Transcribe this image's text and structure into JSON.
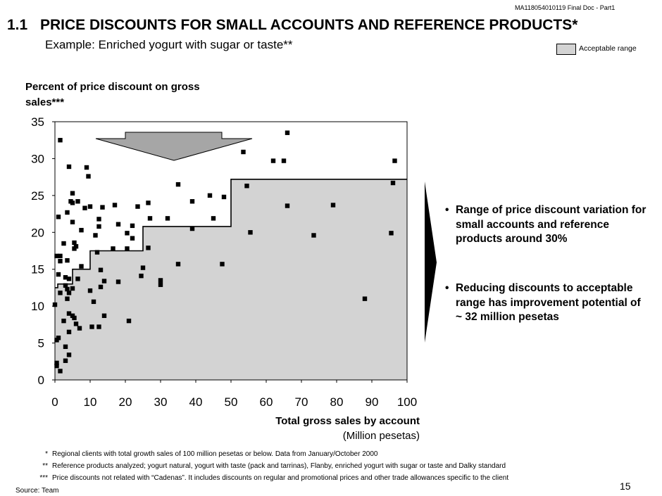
{
  "doc_id": "MA118054010119 Final Doc - Part1",
  "header": {
    "number": "1.1",
    "title": "PRICE DISCOUNTS FOR SMALL ACCOUNTS AND REFERENCE PRODUCTS*",
    "subtitle": "Example: Enriched yogurt with sugar or taste**"
  },
  "legend": {
    "label": "Acceptable range",
    "color": "#d3d3d3"
  },
  "colors": {
    "area": "#d3d3d3",
    "point": "#000000",
    "arrow": "#a6a6a6"
  },
  "chart_data": {
    "type": "scatter",
    "ylabel": "Percent of price discount on gross sales***",
    "xlabel": "Total gross sales by account",
    "xunit": "(Million pesetas)",
    "xlim": [
      0,
      100
    ],
    "ylim": [
      0,
      35
    ],
    "x_ticks": [
      0,
      10,
      20,
      30,
      40,
      50,
      60,
      70,
      80,
      90,
      100
    ],
    "y_ticks": [
      0,
      5,
      10,
      15,
      20,
      25,
      30,
      35
    ],
    "grid": false,
    "acceptable_range": {
      "x": [
        0,
        0.8,
        0.8,
        5,
        5,
        10,
        10,
        25,
        25,
        50,
        50,
        100
      ],
      "y": [
        12.5,
        12.5,
        13,
        13,
        15,
        15,
        17.5,
        17.5,
        20.8,
        20.8,
        27.2,
        27.2
      ]
    },
    "points": [
      [
        1.5,
        32.5
      ],
      [
        66,
        33.5
      ],
      [
        53.5,
        30.9
      ],
      [
        62,
        29.7
      ],
      [
        65,
        29.7
      ],
      [
        96.5,
        29.7
      ],
      [
        4,
        28.9
      ],
      [
        9,
        28.8
      ],
      [
        9.5,
        27.6
      ],
      [
        35,
        26.5
      ],
      [
        54.5,
        26.3
      ],
      [
        96,
        26.7
      ],
      [
        5,
        25.3
      ],
      [
        44,
        25.0
      ],
      [
        48,
        24.8
      ],
      [
        4.5,
        24.2
      ],
      [
        5,
        24.0
      ],
      [
        6.5,
        24.2
      ],
      [
        26.5,
        24.0
      ],
      [
        39,
        24.2
      ],
      [
        3.5,
        22.7
      ],
      [
        8.5,
        23.3
      ],
      [
        10,
        23.5
      ],
      [
        13.5,
        23.4
      ],
      [
        17,
        23.7
      ],
      [
        23.5,
        23.5
      ],
      [
        66,
        23.6
      ],
      [
        79,
        23.7
      ],
      [
        1,
        22.1
      ],
      [
        5,
        21.4
      ],
      [
        12.5,
        21.8
      ],
      [
        18,
        21.1
      ],
      [
        20.5,
        19.9
      ],
      [
        22,
        20.9
      ],
      [
        27,
        21.9
      ],
      [
        32,
        21.9
      ],
      [
        45,
        21.9
      ],
      [
        7.5,
        20.3
      ],
      [
        12.5,
        20.8
      ],
      [
        11.5,
        19.6
      ],
      [
        22,
        19.2
      ],
      [
        39,
        20.5
      ],
      [
        55.5,
        20.0
      ],
      [
        73.5,
        19.6
      ],
      [
        95.5,
        19.9
      ],
      [
        5.5,
        18.6
      ],
      [
        2.5,
        18.5
      ],
      [
        6,
        18.1
      ],
      [
        5.5,
        17.8
      ],
      [
        16.5,
        17.8
      ],
      [
        20.5,
        17.8
      ],
      [
        26.5,
        17.9
      ],
      [
        12,
        17.3
      ],
      [
        0.5,
        16.8
      ],
      [
        1.5,
        16.8
      ],
      [
        3.5,
        16.2
      ],
      [
        1.5,
        16.1
      ],
      [
        7.5,
        15.4
      ],
      [
        35,
        15.7
      ],
      [
        47.5,
        15.7
      ],
      [
        25,
        15.2
      ],
      [
        13,
        14.9
      ],
      [
        1,
        14.3
      ],
      [
        3,
        13.9
      ],
      [
        4,
        13.7
      ],
      [
        6.5,
        13.7
      ],
      [
        24.5,
        14.1
      ],
      [
        14,
        13.4
      ],
      [
        18,
        13.3
      ],
      [
        30,
        13.5
      ],
      [
        30,
        12.9
      ],
      [
        3,
        12.8
      ],
      [
        5,
        12.4
      ],
      [
        3.5,
        12.3
      ],
      [
        13,
        12.6
      ],
      [
        1.5,
        11.8
      ],
      [
        4,
        11.8
      ],
      [
        10,
        12.1
      ],
      [
        3.5,
        11.0
      ],
      [
        0,
        10.2
      ],
      [
        11,
        10.6
      ],
      [
        4,
        9.0
      ],
      [
        5,
        8.7
      ],
      [
        5.5,
        8.4
      ],
      [
        14,
        8.7
      ],
      [
        2.5,
        8.0
      ],
      [
        6,
        7.6
      ],
      [
        21,
        8.0
      ],
      [
        7,
        7.0
      ],
      [
        10.5,
        7.2
      ],
      [
        12.5,
        7.2
      ],
      [
        4,
        6.5
      ],
      [
        1,
        5.7
      ],
      [
        0.5,
        5.4
      ],
      [
        3,
        4.5
      ],
      [
        4,
        3.4
      ],
      [
        3,
        2.6
      ],
      [
        0.5,
        2.3
      ],
      [
        0.5,
        1.9
      ],
      [
        1.5,
        1.2
      ],
      [
        88,
        11.0
      ]
    ]
  },
  "arrow_label": "",
  "bullets": [
    {
      "bullet": "•",
      "text": "Range of price discount variation for small accounts and reference products around  30%"
    },
    {
      "bullet": "•",
      "text": "Reducing discounts to acceptable range has improvement potential of  ~ 32 million pesetas"
    }
  ],
  "footnotes": [
    {
      "marker": "*",
      "text": "Regional clients with total growth sales of 100 million pesetas or below. Data from January/October 2000"
    },
    {
      "marker": "**",
      "text": "Reference products analyzed; yogurt natural, yogurt with taste (pack and tarrinas), Flanby, enriched yogurt with sugar or taste and Dalky standard"
    },
    {
      "marker": "***",
      "text": "Price discounts not related with “Cadenas”. It includes discounts on regular and promotional prices and other trade allowances specific to the client"
    }
  ],
  "source": "Source: Team",
  "page_number": "15"
}
